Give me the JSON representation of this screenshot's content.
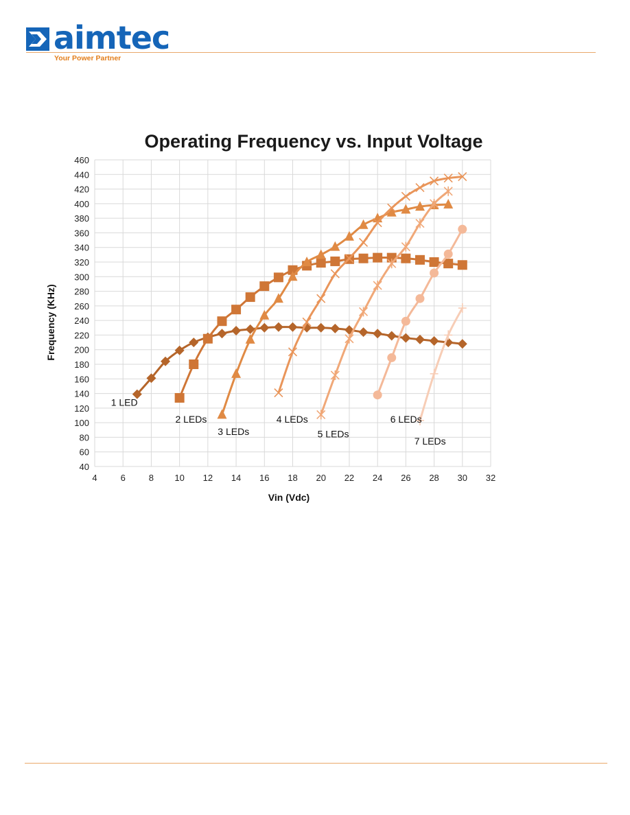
{
  "header": {
    "logo_text": "aimtec",
    "tagline": "Your Power Partner"
  },
  "colors": {
    "brand_blue": "#1565b8",
    "brand_orange": "#e37e1b",
    "rule": "#e9a86a",
    "grid": "#d9d9d9"
  },
  "chart_data": {
    "type": "line",
    "title": "Operating Frequency vs. Input Voltage",
    "xlabel": "Vin (Vdc)",
    "ylabel": "Frequency (KHz)",
    "xlim": [
      4,
      32
    ],
    "ylim": [
      40,
      460
    ],
    "xticks": [
      4,
      6,
      8,
      10,
      12,
      14,
      16,
      18,
      20,
      22,
      24,
      26,
      28,
      30,
      32
    ],
    "yticks": [
      40,
      60,
      80,
      100,
      120,
      140,
      160,
      180,
      200,
      220,
      240,
      260,
      280,
      300,
      320,
      340,
      360,
      380,
      400,
      420,
      440,
      460
    ],
    "grid": true,
    "series": [
      {
        "name": "1 LED",
        "marker": "diamond",
        "color": "#b5652a",
        "x": [
          7,
          8,
          9,
          10,
          11,
          12,
          13,
          14,
          15,
          16,
          17,
          18,
          19,
          20,
          21,
          22,
          23,
          24,
          25,
          26,
          27,
          28,
          29,
          30
        ],
        "y": [
          139,
          161,
          184,
          199,
          210,
          217,
          222,
          226,
          228,
          230,
          231,
          231,
          230,
          230,
          229,
          227,
          224,
          222,
          219,
          216,
          214,
          212,
          210,
          208
        ]
      },
      {
        "name": "2 LEDs",
        "marker": "square",
        "color": "#cf7636",
        "x": [
          10,
          11,
          12,
          13,
          14,
          15,
          16,
          17,
          18,
          19,
          20,
          21,
          22,
          23,
          24,
          25,
          26,
          27,
          28,
          29,
          30
        ],
        "y": [
          134,
          180,
          215,
          239,
          255,
          272,
          287,
          299,
          309,
          315,
          319,
          321,
          324,
          325,
          326,
          326,
          325,
          323,
          320,
          318,
          316
        ]
      },
      {
        "name": "3 LEDs",
        "marker": "triangle",
        "color": "#e08a44",
        "x": [
          13,
          14,
          15,
          16,
          17,
          18,
          19,
          20,
          21,
          22,
          23,
          24,
          25,
          26,
          27,
          28,
          29
        ],
        "y": [
          111,
          167,
          214,
          247,
          270,
          300,
          320,
          330,
          341,
          355,
          371,
          380,
          388,
          392,
          396,
          398,
          399
        ]
      },
      {
        "name": "4 LEDs",
        "marker": "x",
        "color": "#e9955a",
        "x": [
          17,
          18,
          19,
          20,
          21,
          22,
          23,
          24,
          25,
          26,
          27,
          28,
          29,
          30
        ],
        "y": [
          141,
          197,
          238,
          270,
          304,
          325,
          347,
          374,
          394,
          410,
          422,
          431,
          435,
          437
        ]
      },
      {
        "name": "5 LEDs",
        "marker": "star",
        "color": "#f0a878",
        "x": [
          20,
          21,
          22,
          23,
          24,
          25,
          26,
          27,
          28,
          29
        ],
        "y": [
          111,
          165,
          215,
          252,
          288,
          318,
          341,
          373,
          400,
          417
        ]
      },
      {
        "name": "6 LEDs",
        "marker": "circle",
        "color": "#f4b999",
        "x": [
          24,
          25,
          26,
          27,
          28,
          29,
          30
        ],
        "y": [
          138,
          189,
          239,
          270,
          305,
          331,
          365
        ]
      },
      {
        "name": "7 LEDs",
        "marker": "plus",
        "color": "#f7cdb6",
        "x": [
          27,
          28,
          29,
          30
        ],
        "y": [
          103,
          167,
          220,
          257
        ]
      }
    ]
  }
}
